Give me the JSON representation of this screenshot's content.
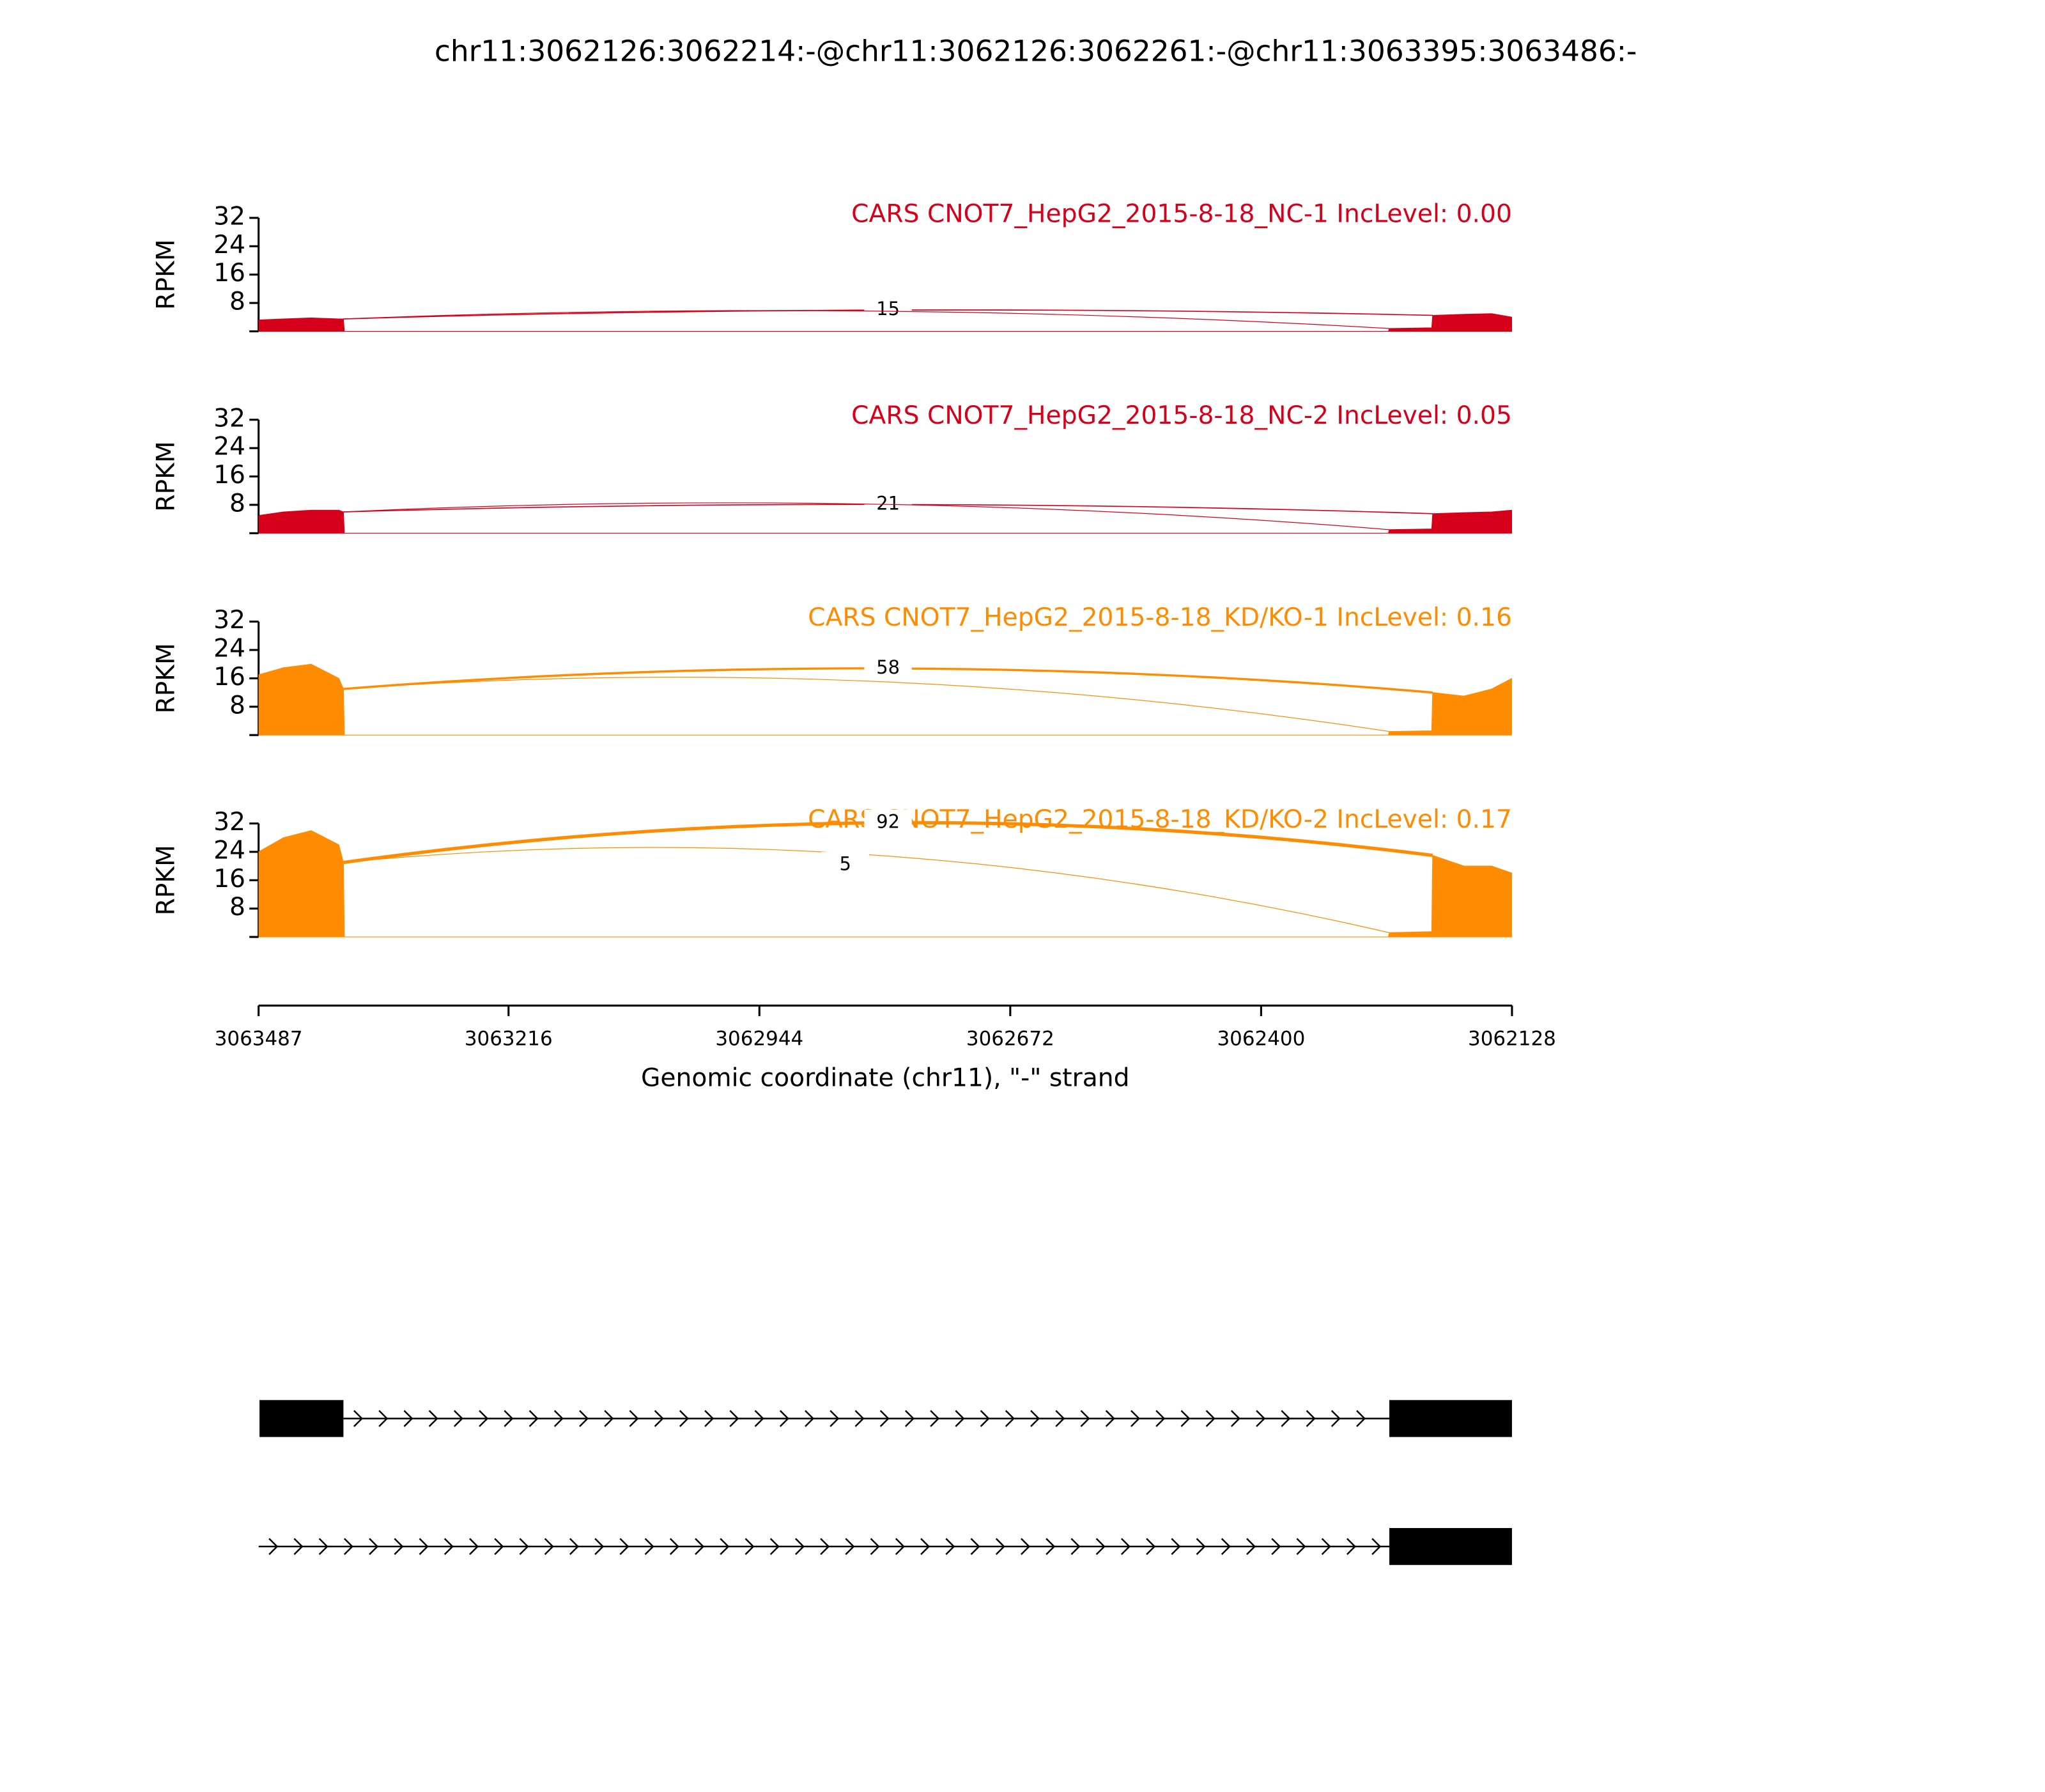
{
  "title": "chr11:3062126:3062214:-@chr11:3062126:3062261:-@chr11:3063395:3063486:-",
  "x_axis": {
    "label": "Genomic coordinate (chr11), \"-\" strand",
    "xlim": [
      3063487,
      3062128
    ],
    "xticks": [
      3063487,
      3063216,
      3062944,
      3062672,
      3062400,
      3062128
    ]
  },
  "chart_data": [
    {
      "type": "area",
      "title": "CARS CNOT7_HepG2_2015-8-18_NC-1 IncLevel: 0.00",
      "color": "#d7001a",
      "ylabel": "RPKM",
      "ylim": [
        0,
        32
      ],
      "yticks": [
        8,
        16,
        24,
        32
      ],
      "x": [
        3063487,
        3063460,
        3063430,
        3063400,
        3063395,
        3063394,
        3062262,
        3062261,
        3062215,
        3062214,
        3062180,
        3062150,
        3062128
      ],
      "values": [
        3.2,
        3.5,
        3.8,
        3.5,
        3.5,
        0,
        0,
        0.8,
        1,
        4.5,
        4.8,
        5,
        4
      ],
      "junctions": [
        {
          "start": 3063395,
          "end": 3062214,
          "count": 15
        },
        {
          "start": 3063395,
          "end": 3062261
        }
      ]
    },
    {
      "type": "area",
      "title": "CARS CNOT7_HepG2_2015-8-18_NC-2 IncLevel: 0.05",
      "color": "#d7001a",
      "ylabel": "RPKM",
      "ylim": [
        0,
        32
      ],
      "yticks": [
        8,
        16,
        24,
        32
      ],
      "x": [
        3063487,
        3063460,
        3063430,
        3063400,
        3063395,
        3063394,
        3062262,
        3062261,
        3062215,
        3062214,
        3062180,
        3062150,
        3062128
      ],
      "values": [
        5,
        6,
        6.5,
        6.5,
        6,
        0,
        0,
        1,
        1.2,
        5.5,
        5.8,
        6,
        6.5
      ],
      "junctions": [
        {
          "start": 3063395,
          "end": 3062214,
          "count": 21
        },
        {
          "start": 3063395,
          "end": 3062261
        }
      ]
    },
    {
      "type": "area",
      "title": "CARS CNOT7_HepG2_2015-8-18_KD/KO-1 IncLevel: 0.16",
      "color": "#ff8c00",
      "ylabel": "RPKM",
      "ylim": [
        0,
        32
      ],
      "yticks": [
        8,
        16,
        24,
        32
      ],
      "x": [
        3063487,
        3063460,
        3063430,
        3063400,
        3063395,
        3063394,
        3062262,
        3062261,
        3062215,
        3062214,
        3062180,
        3062150,
        3062128
      ],
      "values": [
        17,
        19,
        20,
        16,
        13,
        0,
        0,
        1,
        1.2,
        12,
        11,
        13,
        16
      ],
      "junctions": [
        {
          "start": 3063395,
          "end": 3062214,
          "count": 58
        },
        {
          "start": 3063395,
          "end": 3062261
        }
      ]
    },
    {
      "type": "area",
      "title": "CARS CNOT7_HepG2_2015-8-18_KD/KO-2 IncLevel: 0.17",
      "color": "#ff8c00",
      "ylabel": "RPKM",
      "ylim": [
        0,
        32
      ],
      "yticks": [
        8,
        16,
        24,
        32
      ],
      "x": [
        3063487,
        3063460,
        3063430,
        3063400,
        3063395,
        3063394,
        3062262,
        3062261,
        3062215,
        3062214,
        3062180,
        3062150,
        3062128
      ],
      "values": [
        24,
        28,
        30,
        26,
        21,
        0,
        0,
        1.2,
        1.5,
        23,
        20,
        20,
        18
      ],
      "junctions": [
        {
          "start": 3063395,
          "end": 3062214,
          "count": 92
        },
        {
          "start": 3063395,
          "end": 3062261,
          "count": 5
        }
      ]
    }
  ],
  "transcripts": [
    {
      "exons": [
        [
          3063395,
          3063486
        ],
        [
          3062126,
          3062261
        ]
      ]
    },
    {
      "exons": [
        [
          3062126,
          3062261
        ]
      ]
    }
  ]
}
